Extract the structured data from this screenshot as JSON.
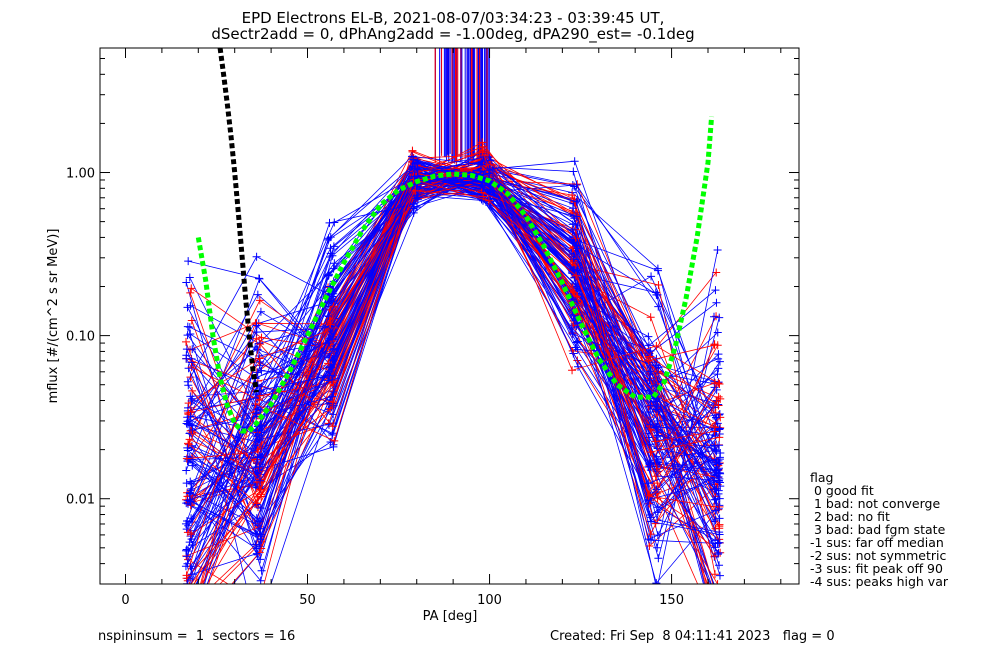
{
  "chart_data": {
    "type": "line",
    "title": "EPD Electrons EL-B, 2021-08-07/03:34:23 - 03:39:45 UT,",
    "subtitle": "dSectr2add = 0, dPhAng2add = -1.00deg, dPA290_est=  -0.1deg",
    "xlabel": "PA [deg]",
    "ylabel": "mflux [#/(cm^2 s sr MeV)]",
    "xlim": [
      -7,
      185
    ],
    "ylim": [
      0.003,
      5.8
    ],
    "yscale": "log",
    "x_ticks": [
      "0",
      "50",
      "100",
      "150"
    ],
    "y_ticks": [
      "0.01",
      "0.10",
      "1.00"
    ],
    "grid": false,
    "series_colors": {
      "red": "#ff0000",
      "blue": "#0000ff",
      "black_fit": "#000000",
      "green_fit": "#00ff00"
    },
    "pa_sectors": [
      17,
      18,
      36,
      37,
      56,
      57,
      79,
      80,
      98,
      100,
      123,
      124,
      144,
      146,
      162,
      163
    ],
    "median_profile": {
      "x": [
        17,
        36,
        56,
        79,
        98,
        123,
        145,
        162
      ],
      "y": [
        0.012,
        0.022,
        0.1,
        0.9,
        0.95,
        0.25,
        0.03,
        0.015
      ]
    },
    "fit_black": {
      "x": [
        26,
        27,
        28,
        29,
        30,
        31,
        32,
        33,
        34,
        35,
        36
      ],
      "y": [
        5.8,
        3.9,
        2.6,
        1.65,
        1.0,
        0.57,
        0.31,
        0.17,
        0.098,
        0.062,
        0.045
      ]
    },
    "fit_green": {
      "x": [
        20,
        22,
        24,
        26,
        28,
        30,
        32,
        34,
        36,
        40,
        45,
        50,
        55,
        60,
        65,
        70,
        75,
        80,
        85,
        90,
        95,
        100,
        105,
        110,
        115,
        120,
        125,
        130,
        135,
        140,
        145,
        148,
        151,
        154,
        157,
        160,
        161
      ],
      "y": [
        0.4,
        0.22,
        0.1,
        0.055,
        0.037,
        0.029,
        0.026,
        0.026,
        0.029,
        0.038,
        0.06,
        0.1,
        0.17,
        0.28,
        0.44,
        0.63,
        0.78,
        0.88,
        0.95,
        0.98,
        0.96,
        0.89,
        0.74,
        0.54,
        0.35,
        0.21,
        0.12,
        0.072,
        0.05,
        0.042,
        0.042,
        0.052,
        0.085,
        0.17,
        0.4,
        1.15,
        2.2
      ]
    },
    "saturated_band": {
      "x": [
        85,
        100
      ],
      "y_bottom": 1.2
    },
    "legend": {
      "heading": "flag",
      "placement": "right",
      "entries": [
        " 0 good fit",
        " 1 bad: not converge",
        " 2 bad: no fit",
        " 3 bad: bad fgm state",
        "-1 sus: far off median",
        "-2 sus: not symmetric",
        "-3 sus: fit peak off 90",
        "-4 sus: peaks high var"
      ]
    }
  },
  "footer": {
    "left": "nspininsum =  1  sectors = 16",
    "right": "Created: Fri Sep  8 04:11:41 2023   flag = 0"
  }
}
